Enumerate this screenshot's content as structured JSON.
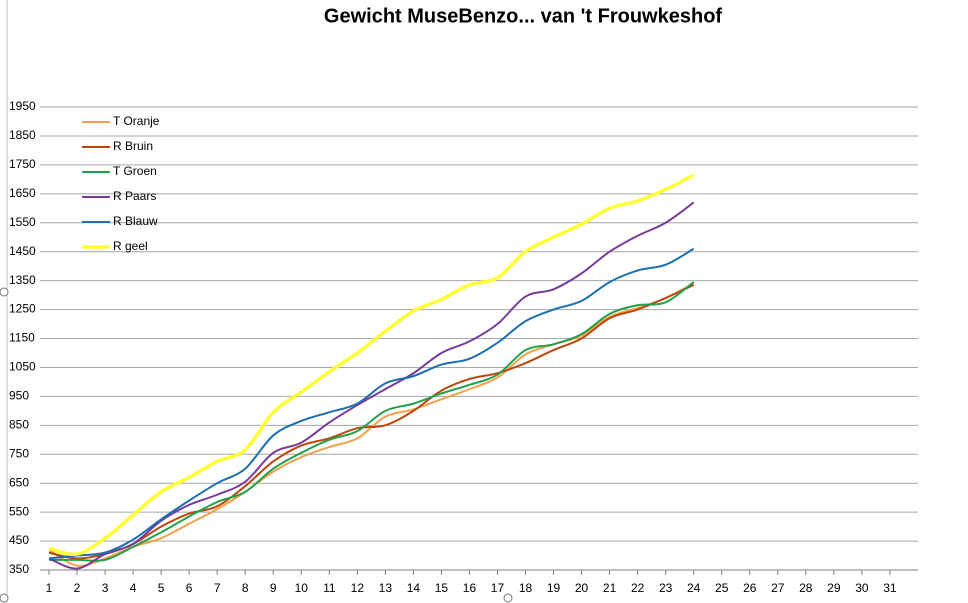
{
  "chart_data": {
    "type": "line",
    "title": "Gewicht MuseBenzo... van 't Frouwkeshof",
    "categories": [
      1,
      2,
      3,
      4,
      5,
      6,
      7,
      8,
      9,
      10,
      11,
      12,
      13,
      14,
      15,
      16,
      17,
      18,
      19,
      20,
      21,
      22,
      23,
      24,
      25,
      26,
      27,
      28,
      29,
      30,
      31
    ],
    "ylim": [
      350,
      1950
    ],
    "yticks": [
      350,
      450,
      550,
      650,
      750,
      850,
      950,
      1050,
      1150,
      1250,
      1350,
      1450,
      1550,
      1650,
      1750,
      1850,
      1950
    ],
    "grid": true,
    "legend": "top-left",
    "series": [
      {
        "name": "T Oranje",
        "color": "#f4a14a",
        "values": [
          420,
          365,
          390,
          430,
          460,
          510,
          560,
          620,
          690,
          740,
          775,
          805,
          880,
          905,
          940,
          975,
          1015,
          1095,
          1130,
          1160,
          1225,
          1255,
          1290,
          1340,
          null,
          null,
          null,
          null,
          null,
          null,
          null
        ]
      },
      {
        "name": "R Bruin",
        "color": "#c0450a",
        "values": [
          410,
          390,
          405,
          440,
          500,
          545,
          570,
          640,
          725,
          780,
          805,
          840,
          850,
          900,
          970,
          1010,
          1030,
          1065,
          1110,
          1150,
          1220,
          1250,
          1290,
          1335,
          null,
          null,
          null,
          null,
          null,
          null,
          null
        ]
      },
      {
        "name": "T Groen",
        "color": "#22a04a",
        "values": [
          385,
          385,
          385,
          430,
          480,
          535,
          585,
          620,
          700,
          755,
          800,
          830,
          900,
          925,
          960,
          990,
          1025,
          1110,
          1130,
          1165,
          1235,
          1265,
          1275,
          1345,
          null,
          null,
          null,
          null,
          null,
          null,
          null
        ]
      },
      {
        "name": "R Paars",
        "color": "#7a3a9a",
        "values": [
          390,
          355,
          405,
          440,
          520,
          575,
          610,
          655,
          755,
          790,
          860,
          920,
          975,
          1030,
          1100,
          1140,
          1200,
          1295,
          1320,
          1375,
          1450,
          1505,
          1550,
          1620,
          null,
          null,
          null,
          null,
          null,
          null,
          null
        ]
      },
      {
        "name": "R Blauw",
        "color": "#1a6fb0",
        "values": [
          390,
          400,
          410,
          455,
          525,
          590,
          650,
          700,
          815,
          865,
          895,
          925,
          995,
          1020,
          1060,
          1080,
          1135,
          1210,
          1250,
          1280,
          1345,
          1385,
          1405,
          1460,
          null,
          null,
          null,
          null,
          null,
          null,
          null
        ]
      },
      {
        "name": "R geel",
        "color": "#ffff33",
        "values": [
          425,
          405,
          460,
          540,
          620,
          670,
          725,
          765,
          895,
          965,
          1035,
          1100,
          1175,
          1245,
          1285,
          1335,
          1360,
          1450,
          1500,
          1545,
          1600,
          1625,
          1665,
          1715,
          null,
          null,
          null,
          null,
          null,
          null,
          null
        ]
      }
    ]
  }
}
